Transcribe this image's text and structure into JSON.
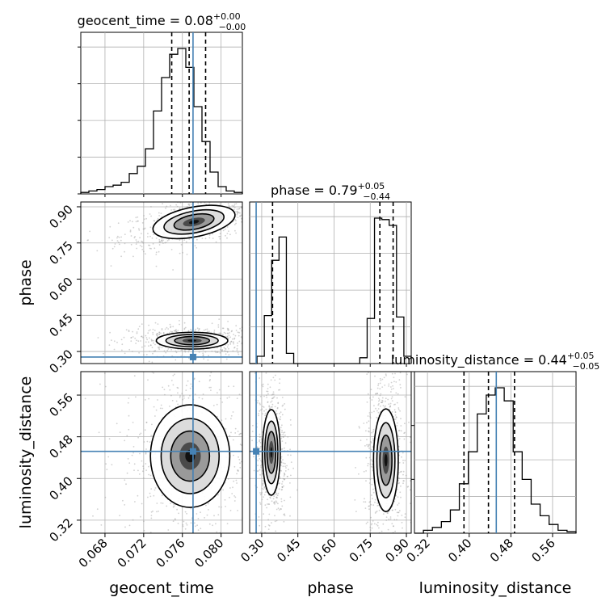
{
  "chart_data": {
    "type": "corner",
    "parameters": [
      {
        "name": "geocent_time",
        "label": "geocent_time",
        "title_main": "geocent_time = 0.08",
        "title_sup": "+0.00",
        "title_sub": "-0.00",
        "range": [
          0.0655,
          0.0822
        ],
        "ticks": [
          "0.068",
          "0.072",
          "0.076",
          "0.080"
        ],
        "tick_values": [
          0.068,
          0.072,
          0.076,
          0.08
        ],
        "truth": 0.0771,
        "quantiles": [
          0.0749,
          0.0767,
          0.0784
        ],
        "hist_heights": [
          0.01,
          0.02,
          0.03,
          0.05,
          0.06,
          0.08,
          0.14,
          0.19,
          0.31,
          0.57,
          0.8,
          0.96,
          1.0,
          0.87,
          0.6,
          0.36,
          0.15,
          0.05,
          0.02,
          0.01
        ]
      },
      {
        "name": "phase",
        "label": "phase",
        "title_main": "phase = 0.79",
        "title_sup": "+0.05",
        "title_sub": "-0.44",
        "range": [
          0.25,
          0.92
        ],
        "ticks": [
          "0.30",
          "0.45",
          "0.60",
          "0.75",
          "0.90"
        ],
        "tick_values": [
          0.3,
          0.45,
          0.6,
          0.75,
          0.9
        ],
        "truth": 0.277,
        "quantiles": [
          0.345,
          0.79,
          0.845
        ],
        "hist_heights": [
          0.0,
          0.05,
          0.33,
          0.71,
          0.87,
          0.07,
          0.0,
          0.0,
          0.0,
          0.0,
          0.0,
          0.0,
          0.0,
          0.0,
          0.0,
          0.04,
          0.31,
          1.0,
          0.99,
          0.95,
          0.32,
          0.05
        ]
      },
      {
        "name": "luminosity_distance",
        "label": "luminosity_distance",
        "title_main": "luminosity_distance = 0.44",
        "title_sup": "+0.05",
        "title_sub": "-0.05",
        "range": [
          0.295,
          0.605
        ],
        "ticks": [
          "0.32",
          "0.40",
          "0.48",
          "0.56"
        ],
        "tick_values": [
          0.32,
          0.4,
          0.48,
          0.56
        ],
        "truth": 0.452,
        "quantiles": [
          0.39,
          0.437,
          0.487
        ],
        "hist_heights": [
          0.0,
          0.02,
          0.04,
          0.08,
          0.16,
          0.34,
          0.56,
          0.82,
          0.95,
          1.0,
          0.91,
          0.56,
          0.37,
          0.2,
          0.12,
          0.06,
          0.02,
          0.01
        ]
      }
    ],
    "ylabels": [
      {
        "label": "phase",
        "ticks": [
          "0.30",
          "0.45",
          "0.60",
          "0.75",
          "0.90"
        ],
        "tick_values": [
          0.3,
          0.45,
          0.6,
          0.75,
          0.9
        ]
      },
      {
        "label": "luminosity_distance",
        "ticks": [
          "0.32",
          "0.40",
          "0.48",
          "0.56"
        ],
        "tick_values": [
          0.32,
          0.4,
          0.48,
          0.56
        ]
      }
    ],
    "blobs_2d": [
      {
        "pair": [
          0,
          1
        ],
        "modes": [
          {
            "cx": 0.0772,
            "cy": 0.837,
            "sx": 0.0021,
            "sy": 0.03,
            "rho": 0.55,
            "w": 1.0
          },
          {
            "cx": 0.077,
            "cy": 0.345,
            "sx": 0.0018,
            "sy": 0.017,
            "rho": 0.0,
            "w": 0.9
          }
        ]
      },
      {
        "pair": [
          0,
          2
        ],
        "modes": [
          {
            "cx": 0.0768,
            "cy": 0.443,
            "sx": 0.002,
            "sy": 0.048,
            "rho": 0.0,
            "w": 1.0
          }
        ]
      },
      {
        "pair": [
          1,
          2
        ],
        "modes": [
          {
            "cx": 0.34,
            "cy": 0.45,
            "sx": 0.018,
            "sy": 0.04,
            "rho": 0.0,
            "w": 0.85
          },
          {
            "cx": 0.815,
            "cy": 0.435,
            "sx": 0.025,
            "sy": 0.048,
            "rho": 0.0,
            "w": 1.0
          }
        ]
      }
    ],
    "grid": true,
    "colors": {
      "truth": "#4682b4",
      "hist": "#000000",
      "grid": "#b0b0b0",
      "samples": "#9a9a9a"
    }
  }
}
